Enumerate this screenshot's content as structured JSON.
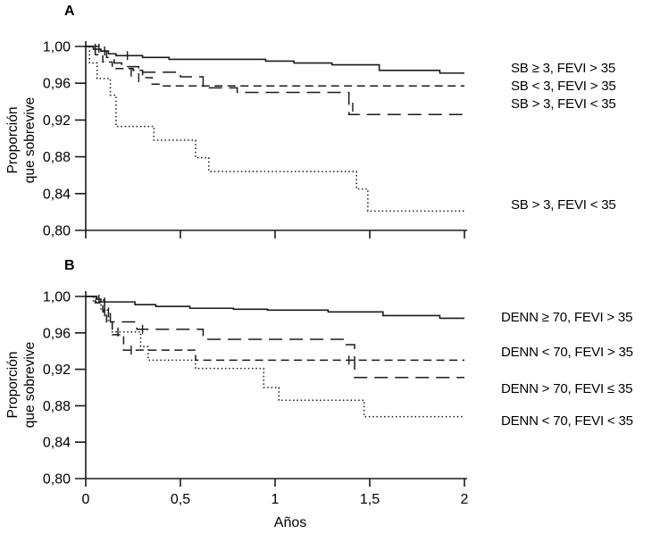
{
  "figure": {
    "background": "#ffffff",
    "line_color": "#1a1a1a",
    "text_color": "#000000"
  },
  "chart_data": [
    {
      "type": "line",
      "subtype": "kaplan-meier-step",
      "panel_label": "A",
      "ylabel": "Proporción que sobrevive",
      "ylabel_lines": [
        "Proporción",
        "que sobrevive"
      ],
      "xlabel": "",
      "xlim": [
        0,
        2
      ],
      "ylim": [
        0.8,
        1.0
      ],
      "grid": false,
      "legend_position": "right",
      "xticks": [
        0,
        0.5,
        1,
        1.5,
        2
      ],
      "xtick_labels": [],
      "yticks": [
        1.0,
        0.96,
        0.92,
        0.88,
        0.84,
        0.8
      ],
      "ytick_labels": [
        "1,00",
        "0,96",
        "0,92",
        "0,88",
        "0,84",
        "0,80"
      ],
      "series": [
        {
          "name": "SB ≥ 3, FEVI > 35",
          "style": "solid",
          "steps": [
            [
              0,
              1.0
            ],
            [
              0.04,
              0.997
            ],
            [
              0.08,
              0.995
            ],
            [
              0.12,
              0.992
            ],
            [
              0.16,
              0.99
            ],
            [
              0.3,
              0.988
            ],
            [
              0.44,
              0.986
            ],
            [
              0.95,
              0.984
            ],
            [
              1.1,
              0.982
            ],
            [
              1.3,
              0.98
            ],
            [
              1.55,
              0.974
            ],
            [
              1.87,
              0.971
            ]
          ],
          "censor_marks": [
            [
              0.05,
              0.998
            ],
            [
              0.07,
              0.998
            ],
            [
              0.1,
              0.995
            ],
            [
              0.22,
              0.99
            ]
          ]
        },
        {
          "name": "SB < 3, FEVI > 35",
          "style": "dash-short",
          "steps": [
            [
              0,
              1.0
            ],
            [
              0.05,
              0.991
            ],
            [
              0.09,
              0.983
            ],
            [
              0.14,
              0.976
            ],
            [
              0.25,
              0.974
            ],
            [
              0.3,
              0.966
            ],
            [
              0.35,
              0.959
            ],
            [
              0.4,
              0.957
            ]
          ],
          "censor_marks": [
            [
              0.28,
              0.966
            ]
          ]
        },
        {
          "name": "SB > 3, FEVI < 35",
          "style": "dash-long",
          "steps": [
            [
              0,
              1.0
            ],
            [
              0.07,
              0.995
            ],
            [
              0.11,
              0.988
            ],
            [
              0.15,
              0.982
            ],
            [
              0.19,
              0.978
            ],
            [
              0.28,
              0.972
            ],
            [
              0.5,
              0.967
            ],
            [
              0.62,
              0.955
            ],
            [
              0.8,
              0.95
            ],
            [
              1.39,
              0.926
            ]
          ],
          "censor_marks": [
            [
              0.24,
              0.972
            ],
            [
              1.41,
              0.934
            ]
          ]
        },
        {
          "name": "SB > 3, FEVI < 35",
          "style": "dotted",
          "steps": [
            [
              0,
              1.0
            ],
            [
              0.02,
              0.982
            ],
            [
              0.06,
              0.965
            ],
            [
              0.13,
              0.947
            ],
            [
              0.16,
              0.913
            ],
            [
              0.36,
              0.898
            ],
            [
              0.58,
              0.879
            ],
            [
              0.65,
              0.864
            ],
            [
              1.43,
              0.845
            ],
            [
              1.49,
              0.821
            ]
          ],
          "censor_marks": []
        }
      ]
    },
    {
      "type": "line",
      "subtype": "kaplan-meier-step",
      "panel_label": "B",
      "ylabel": "Proporción que sobrevive",
      "ylabel_lines": [
        "Proporción",
        "que sobrevive"
      ],
      "xlabel": "Años",
      "xlim": [
        0,
        2
      ],
      "ylim": [
        0.8,
        1.0
      ],
      "grid": false,
      "legend_position": "right",
      "xticks": [
        0,
        0.5,
        1,
        1.5,
        2
      ],
      "xtick_labels": [
        "0",
        "0,5",
        "1",
        "1,5",
        "2"
      ],
      "yticks": [
        1.0,
        0.96,
        0.92,
        0.88,
        0.84,
        0.8
      ],
      "ytick_labels": [
        "1,00",
        "0,96",
        "0,92",
        "0,88",
        "0,84",
        "0,80"
      ],
      "series": [
        {
          "name": "DENN ≥ 70, FEVI > 35",
          "style": "solid",
          "steps": [
            [
              0,
              1.0
            ],
            [
              0.055,
              0.997
            ],
            [
              0.08,
              0.994
            ],
            [
              0.26,
              0.991
            ],
            [
              0.37,
              0.989
            ],
            [
              0.55,
              0.987
            ],
            [
              0.78,
              0.986
            ],
            [
              0.96,
              0.985
            ],
            [
              1.28,
              0.983
            ],
            [
              1.57,
              0.979
            ],
            [
              1.87,
              0.976
            ]
          ],
          "censor_marks": [
            [
              0.07,
              0.997
            ],
            [
              0.1,
              0.994
            ]
          ]
        },
        {
          "name": "DENN < 70, FEVI > 35",
          "style": "dash-short",
          "steps": [
            [
              0,
              1.0
            ],
            [
              0.05,
              0.993
            ],
            [
              0.09,
              0.983
            ],
            [
              0.11,
              0.972
            ],
            [
              0.14,
              0.958
            ],
            [
              0.2,
              0.941
            ],
            [
              0.58,
              0.93
            ]
          ],
          "censor_marks": [
            [
              0.1,
              0.983
            ],
            [
              0.12,
              0.983
            ],
            [
              0.24,
              0.941
            ]
          ]
        },
        {
          "name": "DENN > 70, FEVI ≤ 35",
          "style": "dash-long",
          "steps": [
            [
              0,
              1.0
            ],
            [
              0.06,
              0.996
            ],
            [
              0.1,
              0.983
            ],
            [
              0.13,
              0.972
            ],
            [
              0.27,
              0.964
            ],
            [
              0.62,
              0.953
            ],
            [
              1.36,
              0.947
            ],
            [
              1.42,
              0.911
            ]
          ],
          "censor_marks": [
            [
              0.3,
              0.964
            ],
            [
              1.39,
              0.93
            ]
          ]
        },
        {
          "name": "DENN < 70, FEVI < 35",
          "style": "dotted",
          "steps": [
            [
              0,
              1.0
            ],
            [
              0.04,
              0.994
            ],
            [
              0.08,
              0.985
            ],
            [
              0.12,
              0.972
            ],
            [
              0.14,
              0.961
            ],
            [
              0.29,
              0.945
            ],
            [
              0.33,
              0.93
            ],
            [
              0.58,
              0.921
            ],
            [
              0.94,
              0.9
            ],
            [
              1.02,
              0.886
            ],
            [
              1.47,
              0.868
            ]
          ],
          "censor_marks": [
            [
              0.17,
              0.961
            ]
          ]
        }
      ]
    }
  ]
}
